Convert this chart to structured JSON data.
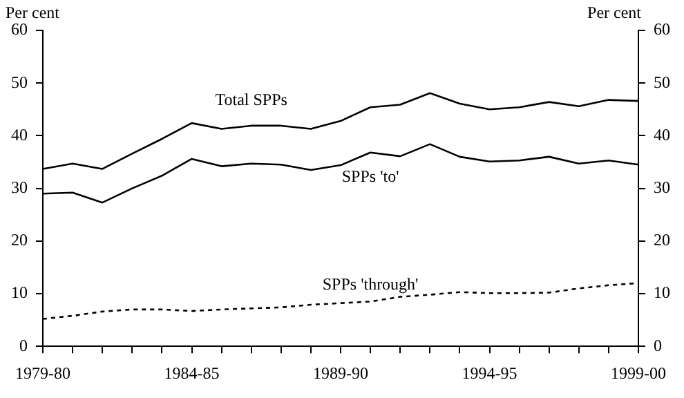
{
  "chart_data": {
    "type": "line",
    "ylabel": "Per cent",
    "y2label": "Per cent",
    "categories": [
      "1979-80",
      null,
      null,
      null,
      null,
      "1984-85",
      null,
      null,
      null,
      null,
      "1989-90",
      null,
      null,
      null,
      null,
      "1994-95",
      null,
      null,
      null,
      null,
      "1999-00"
    ],
    "series": [
      {
        "name": "Total SPPs",
        "color": "#000000",
        "line_style": "solid",
        "values": [
          33.7,
          34.7,
          33.7,
          36.6,
          39.4,
          42.4,
          41.3,
          41.9,
          41.9,
          41.3,
          42.8,
          45.4,
          45.9,
          48.1,
          46.1,
          45.0,
          45.4,
          46.4,
          45.6,
          46.8,
          46.6
        ]
      },
      {
        "name": "SPPs 'to'",
        "color": "#000000",
        "line_style": "solid",
        "values": [
          29.0,
          29.2,
          27.3,
          30.0,
          32.4,
          35.6,
          34.2,
          34.7,
          34.5,
          33.5,
          34.4,
          36.8,
          36.1,
          38.4,
          36.0,
          35.1,
          35.3,
          36.0,
          34.7,
          35.3,
          34.5
        ]
      },
      {
        "name": "SPPs 'through'",
        "color": "#000000",
        "line_style": "dashed",
        "values": [
          5.2,
          5.8,
          6.6,
          7.0,
          7.0,
          6.7,
          7.0,
          7.2,
          7.4,
          7.9,
          8.2,
          8.5,
          9.4,
          9.8,
          10.3,
          10.1,
          10.1,
          10.2,
          11.0,
          11.6,
          12.0
        ]
      }
    ],
    "ylim": [
      0,
      60
    ],
    "yticks": [
      0,
      10,
      20,
      30,
      40,
      50,
      60
    ],
    "y2lim": [
      0,
      60
    ],
    "y2ticks": [
      0,
      10,
      20,
      30,
      40,
      50,
      60
    ],
    "grid": false,
    "legend": false,
    "marker": "none"
  }
}
